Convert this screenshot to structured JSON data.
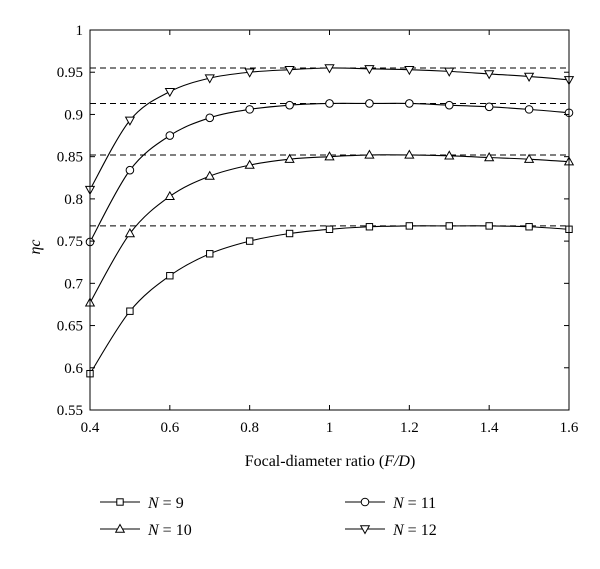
{
  "chart_data": {
    "type": "line",
    "xlabel": "Focal-diameter ratio (F/D)",
    "xlabel_parts": {
      "text": "Focal-diameter ratio (",
      "var": "F/D",
      "close": ")"
    },
    "ylabel": "ηc",
    "xlim": [
      0.4,
      1.6
    ],
    "ylim": [
      0.55,
      1.0
    ],
    "xticks": [
      0.4,
      0.6,
      0.8,
      1.0,
      1.2,
      1.4,
      1.6
    ],
    "xtick_labels": [
      "0.4",
      "0.6",
      "0.8",
      "1",
      "1.2",
      "1.4",
      "1.6"
    ],
    "yticks": [
      0.55,
      0.6,
      0.65,
      0.7,
      0.75,
      0.8,
      0.85,
      0.9,
      0.95,
      1.0
    ],
    "ytick_labels": [
      "0.55",
      "0.6",
      "0.65",
      "0.7",
      "0.75",
      "0.8",
      "0.85",
      "0.9",
      "0.95",
      "1"
    ],
    "grid": false,
    "legend_position": "bottom",
    "x": [
      0.4,
      0.5,
      0.6,
      0.7,
      0.8,
      0.9,
      1.0,
      1.1,
      1.2,
      1.3,
      1.4,
      1.5,
      1.6
    ],
    "series": [
      {
        "name": "N = 9",
        "label_var": "N",
        "label_val": " = 9",
        "marker": "square",
        "values": [
          0.593,
          0.667,
          0.709,
          0.735,
          0.75,
          0.759,
          0.764,
          0.767,
          0.768,
          0.768,
          0.768,
          0.767,
          0.764
        ]
      },
      {
        "name": "N = 10",
        "label_var": "N",
        "label_val": " = 10",
        "marker": "triangle-up",
        "values": [
          0.677,
          0.759,
          0.803,
          0.827,
          0.84,
          0.847,
          0.85,
          0.852,
          0.852,
          0.851,
          0.849,
          0.847,
          0.844
        ]
      },
      {
        "name": "N = 11",
        "label_var": "N",
        "label_val": " = 11",
        "marker": "circle",
        "values": [
          0.749,
          0.834,
          0.875,
          0.896,
          0.906,
          0.911,
          0.913,
          0.913,
          0.913,
          0.911,
          0.909,
          0.906,
          0.902
        ]
      },
      {
        "name": "N = 12",
        "label_var": "N",
        "label_val": " = 12",
        "marker": "triangle-down",
        "values": [
          0.811,
          0.893,
          0.927,
          0.943,
          0.95,
          0.953,
          0.955,
          0.954,
          0.953,
          0.951,
          0.948,
          0.945,
          0.941
        ]
      }
    ],
    "reference_lines": [
      0.768,
      0.852,
      0.913,
      0.955
    ],
    "colors": {
      "line": "#000000",
      "background": "#ffffff"
    }
  }
}
